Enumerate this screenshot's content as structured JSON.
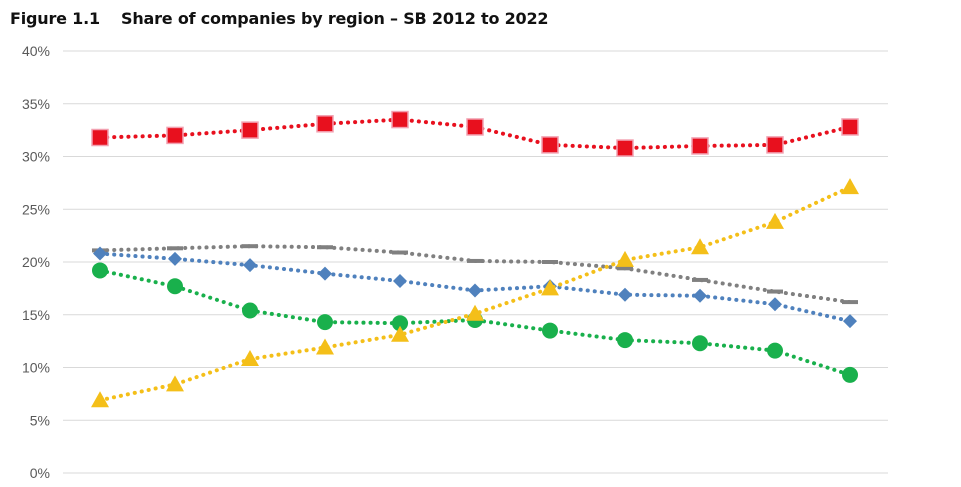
{
  "figure": {
    "label": "Figure 1.1",
    "title": "Share of companies by region – SB 2012 to 2022"
  },
  "chart_data": {
    "type": "line",
    "title": "Share of companies by region – SB 2012 to 2022",
    "xlabel": "",
    "ylabel": "",
    "x_points": 11,
    "ylim": [
      0,
      40
    ],
    "yticks": [
      "0%",
      "5%",
      "10%",
      "15%",
      "20%",
      "25%",
      "30%",
      "35%",
      "40%"
    ],
    "grid": true,
    "legend": "none",
    "series": [
      {
        "marker": "square",
        "color": "#e8101e",
        "values": [
          31.8,
          32.0,
          32.5,
          33.1,
          33.5,
          32.8,
          31.1,
          30.8,
          31.0,
          31.1,
          32.8
        ]
      },
      {
        "marker": "dash",
        "color": "#808080",
        "values": [
          21.1,
          21.3,
          21.5,
          21.4,
          20.9,
          20.1,
          20.0,
          19.4,
          18.3,
          17.2,
          16.2
        ]
      },
      {
        "marker": "diamond",
        "color": "#4f81bd",
        "values": [
          20.8,
          20.3,
          19.7,
          18.9,
          18.2,
          17.3,
          17.7,
          16.9,
          16.8,
          16.0,
          14.4
        ]
      },
      {
        "marker": "circle",
        "color": "#19b04c",
        "values": [
          19.2,
          17.7,
          15.4,
          14.3,
          14.2,
          14.5,
          13.5,
          12.6,
          12.3,
          11.6,
          9.3
        ]
      },
      {
        "marker": "triangle",
        "color": "#f4bf19",
        "values": [
          6.9,
          8.4,
          10.8,
          11.9,
          13.1,
          15.1,
          17.5,
          20.2,
          21.4,
          23.8,
          27.1
        ]
      }
    ]
  }
}
